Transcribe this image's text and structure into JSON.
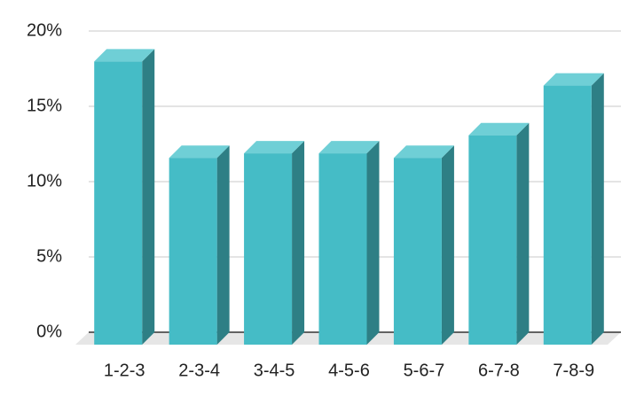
{
  "chart_data": {
    "type": "bar3d",
    "categories": [
      "1-2-3",
      "2-3-4",
      "3-4-5",
      "4-5-6",
      "5-6-7",
      "6-7-8",
      "7-8-9"
    ],
    "values": [
      18.8,
      12.4,
      12.7,
      12.7,
      12.4,
      13.9,
      17.2
    ],
    "color": "#45bcc6",
    "ylim": [
      0,
      20
    ],
    "yticks": [
      {
        "value": 0,
        "label": "0%"
      },
      {
        "value": 5,
        "label": "5%"
      },
      {
        "value": 10,
        "label": "10%"
      },
      {
        "value": 15,
        "label": "15%"
      },
      {
        "value": 20,
        "label": "20%"
      }
    ],
    "grid": true
  }
}
